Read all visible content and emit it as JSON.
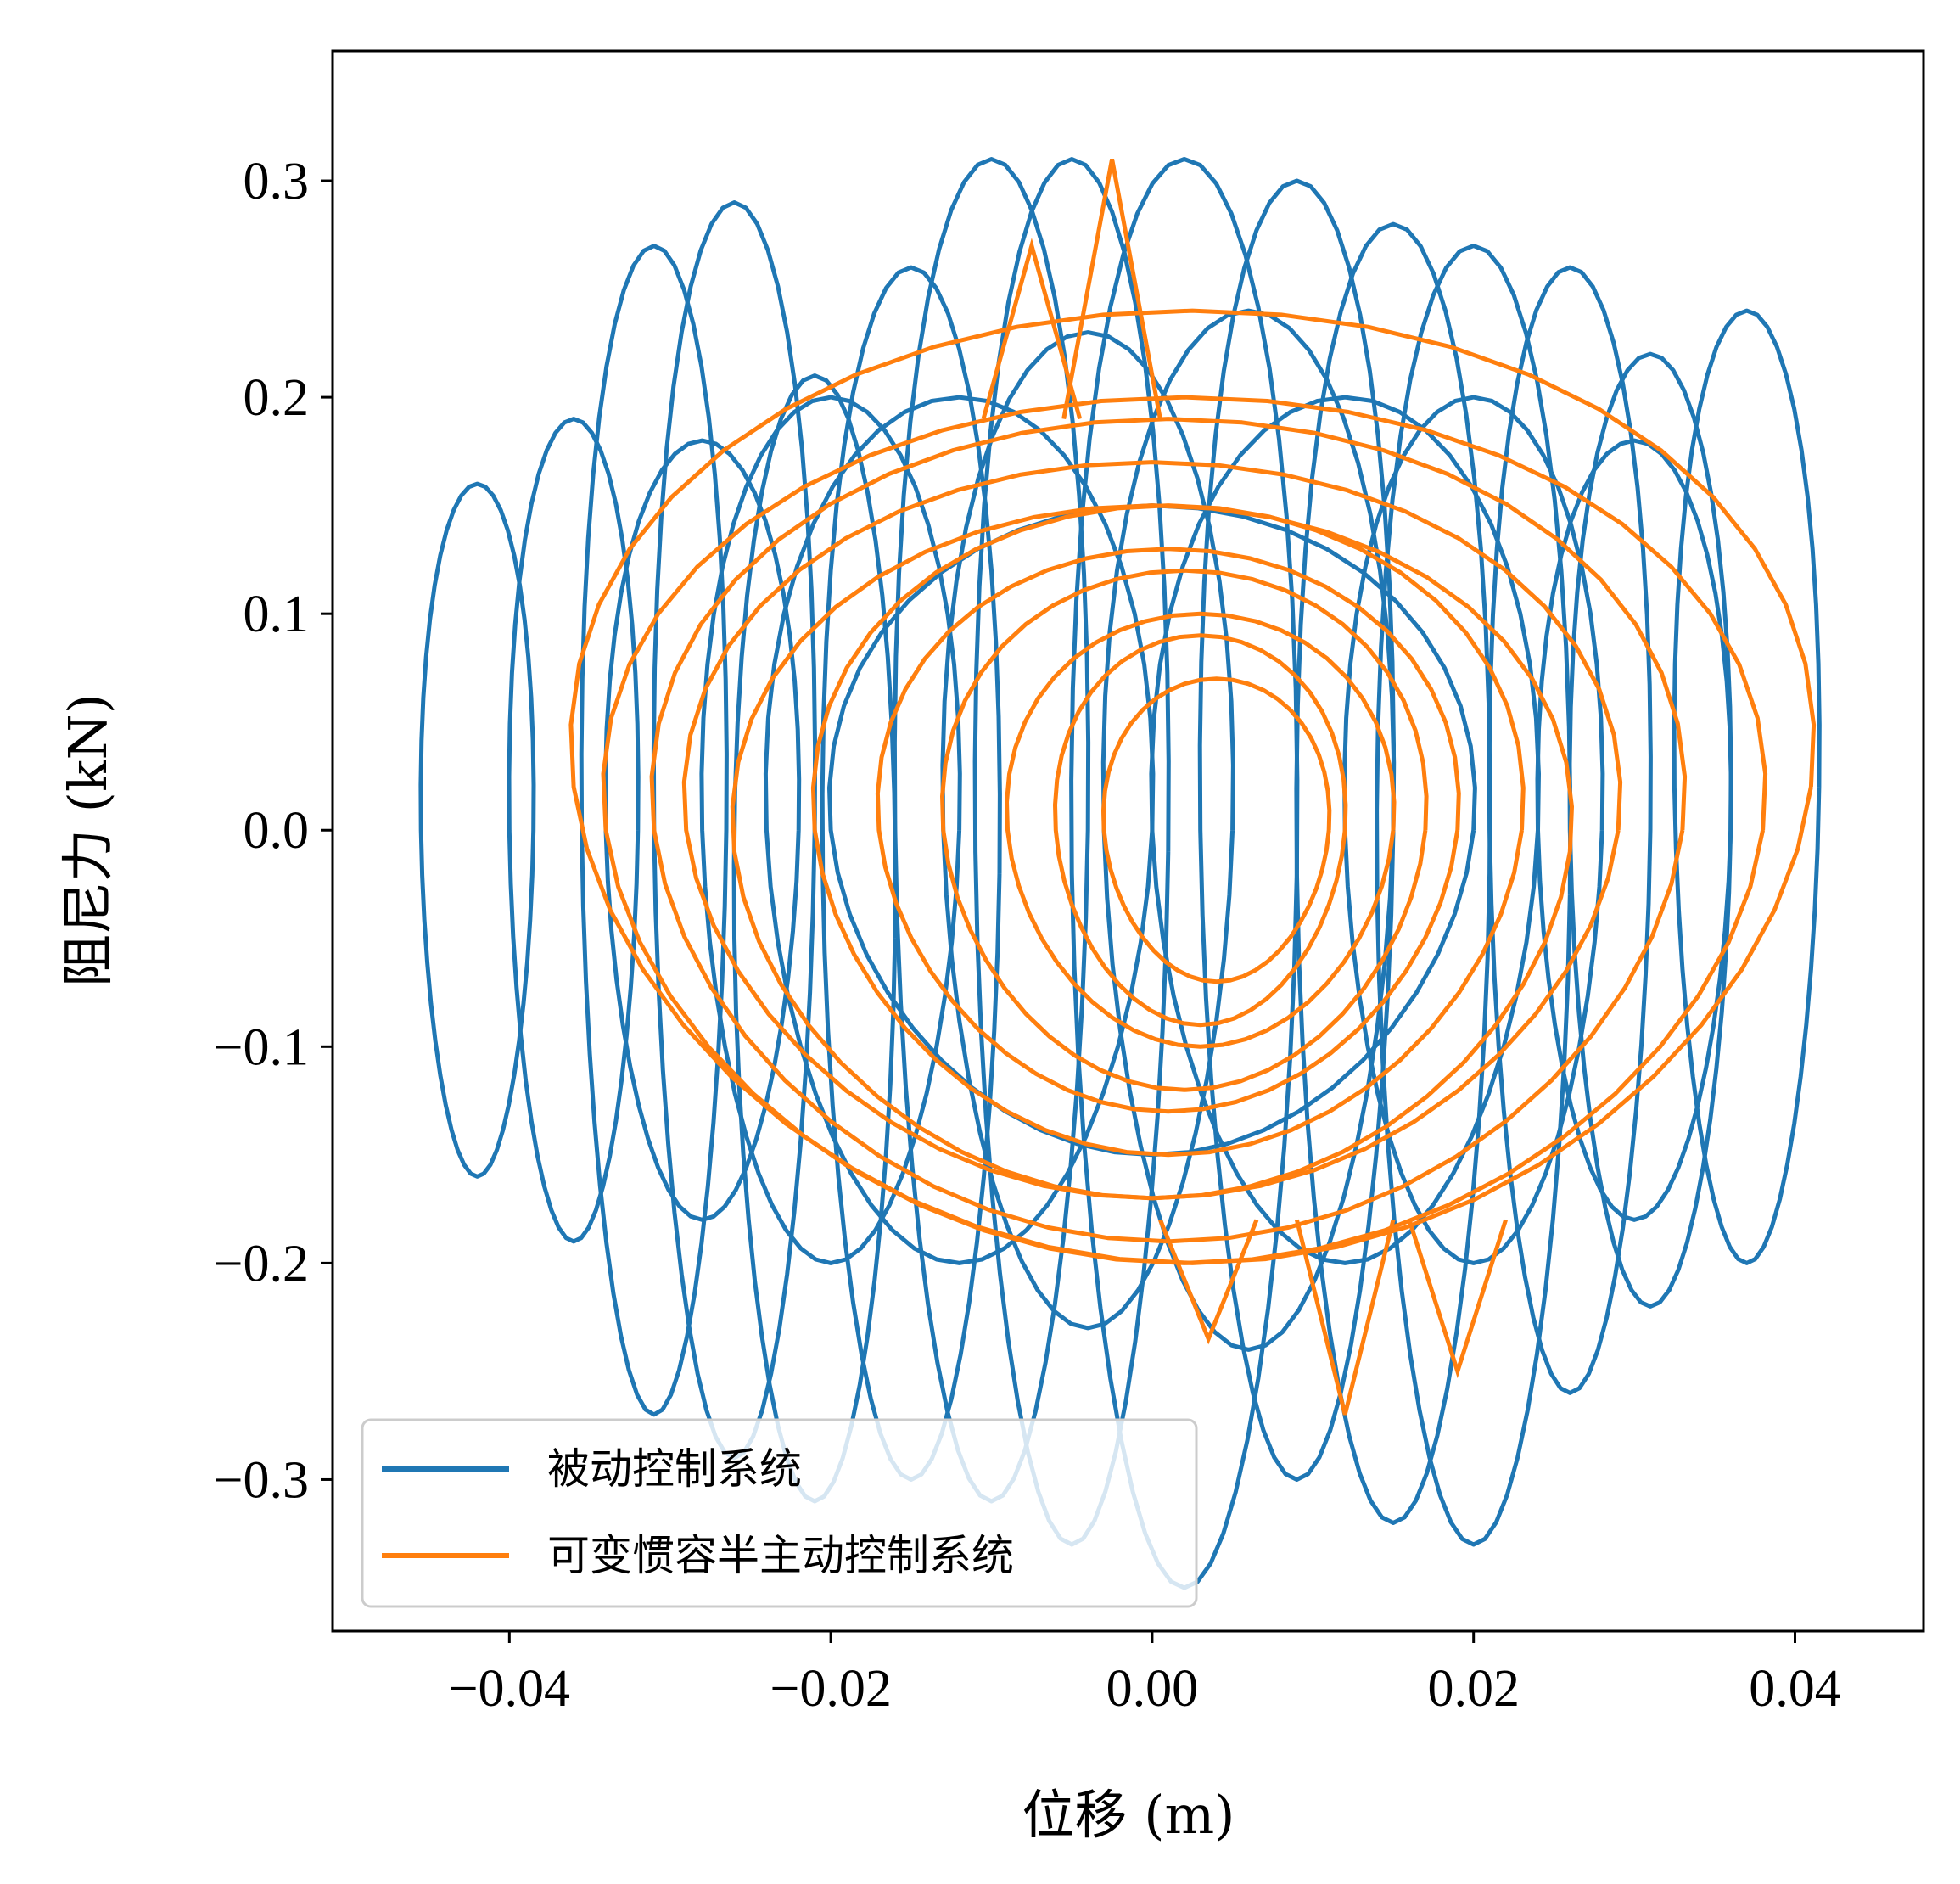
{
  "chart_data": {
    "type": "line",
    "title": "",
    "xlabel": "位移 (m)",
    "ylabel": "阻尼力 (kN)",
    "xlim": [
      -0.051,
      0.048
    ],
    "ylim": [
      -0.37,
      0.36
    ],
    "x_ticks": [
      "−0.04",
      "−0.02",
      "0.00",
      "0.02",
      "0.04"
    ],
    "x_tick_values": [
      -0.04,
      -0.02,
      0.0,
      0.02,
      0.04
    ],
    "y_ticks": [
      "0.3",
      "0.2",
      "0.1",
      "0.0",
      "−0.1",
      "−0.2",
      "−0.3"
    ],
    "y_tick_values": [
      0.3,
      0.2,
      0.1,
      0.0,
      -0.1,
      -0.2,
      -0.3
    ],
    "grid": false,
    "legend_position": "lower-left",
    "series": [
      {
        "name": "被动控制系统",
        "color": "#1f77b4",
        "loops": [
          {
            "cx": -0.042,
            "cy": 0.0,
            "rx": 0.0035,
            "ry": 0.16
          },
          {
            "cx": -0.036,
            "cy": 0.0,
            "rx": 0.004,
            "ry": 0.19
          },
          {
            "cx": -0.031,
            "cy": 0.0,
            "rx": 0.0045,
            "ry": 0.27
          },
          {
            "cx": -0.026,
            "cy": 0.0,
            "rx": 0.005,
            "ry": 0.29
          },
          {
            "cx": -0.021,
            "cy": -0.05,
            "rx": 0.005,
            "ry": 0.26
          },
          {
            "cx": -0.015,
            "cy": -0.02,
            "rx": 0.0055,
            "ry": 0.28
          },
          {
            "cx": -0.01,
            "cy": 0.0,
            "rx": 0.006,
            "ry": 0.31
          },
          {
            "cx": -0.005,
            "cy": -0.01,
            "rx": 0.006,
            "ry": 0.32
          },
          {
            "cx": 0.002,
            "cy": -0.02,
            "rx": 0.007,
            "ry": 0.33
          },
          {
            "cx": 0.009,
            "cy": 0.0,
            "rx": 0.006,
            "ry": 0.3
          },
          {
            "cx": 0.015,
            "cy": -0.02,
            "rx": 0.006,
            "ry": 0.3
          },
          {
            "cx": 0.02,
            "cy": -0.03,
            "rx": 0.006,
            "ry": 0.3
          },
          {
            "cx": 0.026,
            "cy": 0.0,
            "rx": 0.005,
            "ry": 0.26
          },
          {
            "cx": 0.031,
            "cy": 0.0,
            "rx": 0.005,
            "ry": 0.22
          },
          {
            "cx": 0.037,
            "cy": 0.02,
            "rx": 0.0045,
            "ry": 0.22
          },
          {
            "cx": -0.012,
            "cy": 0.0,
            "rx": 0.012,
            "ry": 0.2
          },
          {
            "cx": 0.012,
            "cy": 0.0,
            "rx": 0.012,
            "ry": 0.2
          },
          {
            "cx": 0.0,
            "cy": 0.0,
            "rx": 0.02,
            "ry": 0.15
          },
          {
            "cx": -0.02,
            "cy": 0.0,
            "rx": 0.008,
            "ry": 0.2
          },
          {
            "cx": 0.02,
            "cy": 0.0,
            "rx": 0.008,
            "ry": 0.2
          },
          {
            "cx": -0.028,
            "cy": 0.0,
            "rx": 0.006,
            "ry": 0.18
          },
          {
            "cx": 0.03,
            "cy": 0.0,
            "rx": 0.006,
            "ry": 0.18
          },
          {
            "cx": -0.004,
            "cy": 0.0,
            "rx": 0.009,
            "ry": 0.23
          },
          {
            "cx": 0.006,
            "cy": 0.0,
            "rx": 0.009,
            "ry": 0.24
          }
        ]
      },
      {
        "name": "可变惯容半主动控制系统",
        "color": "#ff7f0e",
        "loops": [
          {
            "cx": 0.0025,
            "cy": 0.02,
            "rx": 0.0385,
            "ry": 0.22
          },
          {
            "cx": 0.002,
            "cy": 0.0,
            "rx": 0.036,
            "ry": 0.2
          },
          {
            "cx": 0.001,
            "cy": 0.0,
            "rx": 0.032,
            "ry": 0.19
          },
          {
            "cx": 0.0,
            "cy": 0.0,
            "rx": 0.029,
            "ry": 0.17
          },
          {
            "cx": 0.0,
            "cy": -0.01,
            "rx": 0.026,
            "ry": 0.16
          },
          {
            "cx": 0.001,
            "cy": 0.0,
            "rx": 0.022,
            "ry": 0.15
          },
          {
            "cx": 0.001,
            "cy": 0.0,
            "rx": 0.018,
            "ry": 0.13
          },
          {
            "cx": 0.002,
            "cy": 0.0,
            "rx": 0.015,
            "ry": 0.12
          },
          {
            "cx": 0.003,
            "cy": 0.0,
            "rx": 0.012,
            "ry": 0.1
          },
          {
            "cx": 0.003,
            "cy": 0.0,
            "rx": 0.009,
            "ry": 0.09
          },
          {
            "cx": 0.004,
            "cy": 0.0,
            "rx": 0.007,
            "ry": 0.07
          }
        ],
        "peaks": [
          {
            "x": -0.0075,
            "y": 0.27
          },
          {
            "x": -0.0025,
            "y": 0.31
          },
          {
            "x": 0.0035,
            "y": -0.235
          },
          {
            "x": 0.012,
            "y": -0.27
          },
          {
            "x": 0.019,
            "y": -0.25
          }
        ]
      }
    ]
  }
}
